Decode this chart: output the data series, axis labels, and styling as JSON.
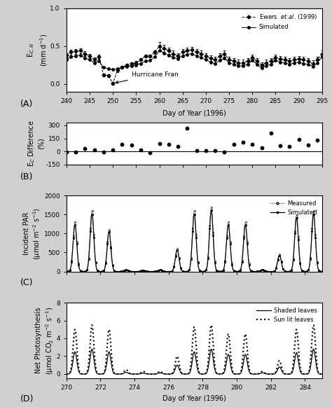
{
  "panel_A": {
    "xlim": [
      240,
      295
    ],
    "ylim": [
      -0.1,
      1.0
    ],
    "yticks": [
      0.0,
      0.5,
      1.0
    ],
    "xlabel": "Day of Year (1996)",
    "ylabel": "E$_{C,N}$\n(mm d$^{-1}$)",
    "label": "(A)",
    "ewers_x": [
      240,
      241,
      242,
      243,
      244,
      245,
      246,
      247,
      248,
      249,
      250,
      251,
      252,
      253,
      254,
      255,
      256,
      257,
      258,
      259,
      260,
      261,
      262,
      263,
      264,
      265,
      266,
      267,
      268,
      269,
      270,
      271,
      272,
      273,
      274,
      275,
      276,
      277,
      278,
      279,
      280,
      281,
      282,
      283,
      284,
      285,
      286,
      287,
      288,
      289,
      290,
      291,
      292,
      293,
      294,
      295
    ],
    "ewers_y": [
      0.38,
      0.42,
      0.43,
      0.44,
      0.4,
      0.37,
      0.32,
      0.36,
      0.12,
      0.11,
      0.01,
      0.18,
      0.22,
      0.25,
      0.27,
      0.28,
      0.32,
      0.37,
      0.37,
      0.42,
      0.5,
      0.47,
      0.44,
      0.4,
      0.37,
      0.42,
      0.44,
      0.45,
      0.42,
      0.4,
      0.37,
      0.34,
      0.32,
      0.37,
      0.4,
      0.32,
      0.3,
      0.28,
      0.28,
      0.3,
      0.35,
      0.3,
      0.25,
      0.28,
      0.3,
      0.35,
      0.33,
      0.32,
      0.3,
      0.32,
      0.33,
      0.32,
      0.3,
      0.27,
      0.32,
      0.4
    ],
    "ewers_yerr": [
      0.03,
      0.03,
      0.03,
      0.03,
      0.03,
      0.03,
      0.03,
      0.03,
      0.02,
      0.02,
      0.02,
      0.02,
      0.02,
      0.02,
      0.02,
      0.02,
      0.02,
      0.02,
      0.02,
      0.02,
      0.05,
      0.05,
      0.04,
      0.04,
      0.04,
      0.04,
      0.04,
      0.04,
      0.04,
      0.04,
      0.04,
      0.04,
      0.04,
      0.04,
      0.04,
      0.04,
      0.04,
      0.04,
      0.04,
      0.04,
      0.04,
      0.04,
      0.04,
      0.04,
      0.04,
      0.04,
      0.04,
      0.04,
      0.04,
      0.04,
      0.04,
      0.04,
      0.04,
      0.04,
      0.04,
      0.04
    ],
    "sim_x": [
      240,
      241,
      242,
      243,
      244,
      245,
      246,
      247,
      248,
      249,
      250,
      251,
      252,
      253,
      254,
      255,
      256,
      257,
      258,
      259,
      260,
      261,
      262,
      263,
      264,
      265,
      266,
      267,
      268,
      269,
      270,
      271,
      272,
      273,
      274,
      275,
      276,
      277,
      278,
      279,
      280,
      281,
      282,
      283,
      284,
      285,
      286,
      287,
      288,
      289,
      290,
      291,
      292,
      293,
      294,
      295
    ],
    "sim_y": [
      0.32,
      0.36,
      0.37,
      0.38,
      0.34,
      0.32,
      0.28,
      0.3,
      0.22,
      0.2,
      0.19,
      0.2,
      0.22,
      0.23,
      0.24,
      0.25,
      0.27,
      0.3,
      0.31,
      0.36,
      0.44,
      0.41,
      0.38,
      0.35,
      0.33,
      0.37,
      0.39,
      0.4,
      0.37,
      0.35,
      0.32,
      0.29,
      0.27,
      0.31,
      0.34,
      0.28,
      0.26,
      0.24,
      0.24,
      0.26,
      0.31,
      0.26,
      0.21,
      0.24,
      0.26,
      0.31,
      0.29,
      0.28,
      0.26,
      0.28,
      0.29,
      0.27,
      0.26,
      0.23,
      0.28,
      0.36
    ],
    "hurricane_x": 250,
    "hurricane_y": 0.01,
    "hurricane_label": "Hurricane Fran"
  },
  "panel_B": {
    "xlim": [
      240,
      295
    ],
    "ylim": [
      -150,
      330
    ],
    "yticks": [
      -150,
      0,
      150,
      300
    ],
    "ylabel": "E$_C$ Difference\n(%)",
    "label": "(B)",
    "diff_x": [
      240,
      242,
      244,
      246,
      248,
      250,
      252,
      254,
      256,
      258,
      260,
      262,
      264,
      266,
      268,
      270,
      272,
      274,
      276,
      278,
      280,
      282,
      284,
      286,
      288,
      290,
      292,
      294
    ],
    "diff_y": [
      -5,
      -3,
      30,
      20,
      -5,
      20,
      80,
      70,
      15,
      -15,
      90,
      80,
      55,
      270,
      10,
      8,
      12,
      -8,
      85,
      110,
      85,
      45,
      210,
      65,
      55,
      135,
      75,
      130
    ]
  },
  "bg_color": "#d0d0d0",
  "plot_bg_color": "#ffffff"
}
